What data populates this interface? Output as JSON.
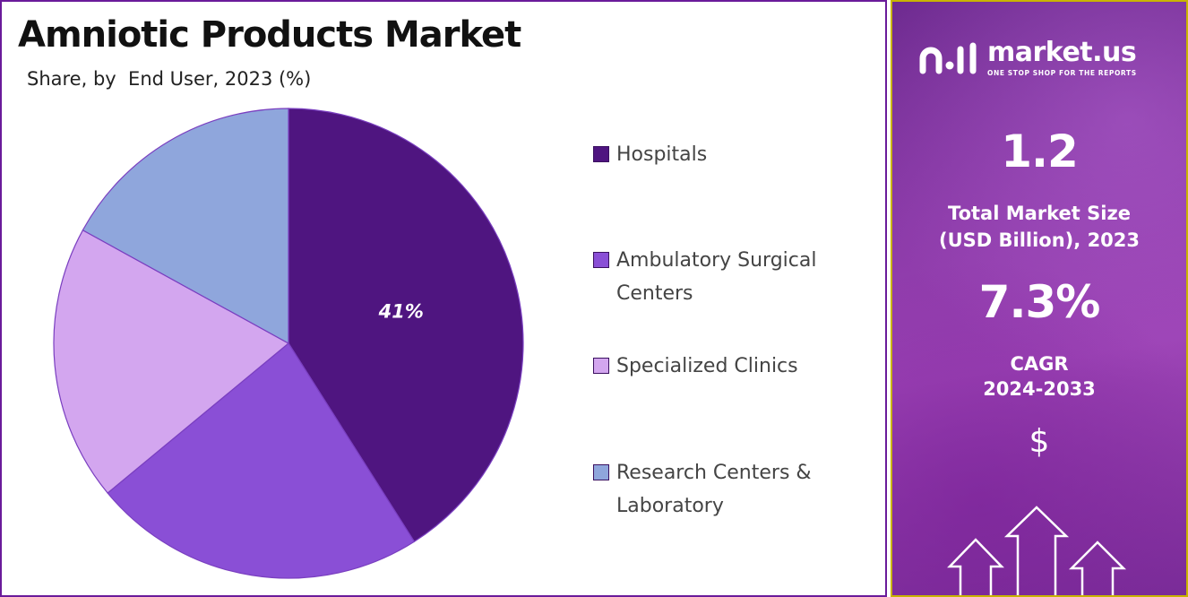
{
  "header": {
    "title": "Amniotic Products Market",
    "subtitle": "Share, by  End User, 2023 (%)"
  },
  "chart_data": {
    "type": "pie",
    "title": "Amniotic Products Market",
    "subtitle": "Share, by  End User, 2023 (%)",
    "categories": [
      "Hospitals",
      "Ambulatory Surgical Centers",
      "Specialized Clinics",
      "Research Centers & Laboratory"
    ],
    "values": [
      41,
      23,
      19,
      17
    ],
    "data_labels": [
      {
        "category": "Hospitals",
        "text": "41%"
      }
    ],
    "colors": [
      "#4f1580",
      "#8a4fd6",
      "#d3a6ef",
      "#8fa6dc"
    ],
    "legend_position": "right",
    "start_angle_deg": 0,
    "direction": "clockwise"
  },
  "legend": [
    {
      "label": "Hospitals",
      "color": "#4f1580"
    },
    {
      "label": "Ambulatory Surgical Centers",
      "color": "#8a4fd6"
    },
    {
      "label": "Specialized Clinics",
      "color": "#d3a6ef"
    },
    {
      "label": "Research Centers & Laboratory",
      "color": "#8fa6dc"
    }
  ],
  "sidebar": {
    "brand_name": "market.us",
    "brand_tagline": "ONE STOP SHOP FOR THE REPORTS",
    "market_size_value": "1.2",
    "market_size_label_1": "Total Market Size",
    "market_size_label_2": "(USD Billion), 2023",
    "cagr_value": "7.3%",
    "cagr_label_1": "CAGR",
    "cagr_label_2": "2024-2033",
    "currency_symbol": "$",
    "logo_icon": "market-us-logo-icon",
    "decor_icon": "growth-arrows-icon"
  },
  "colors": {
    "left_border": "#6a1b9a",
    "right_border": "#c9b400",
    "panel_purple": "#8b3aa8"
  }
}
